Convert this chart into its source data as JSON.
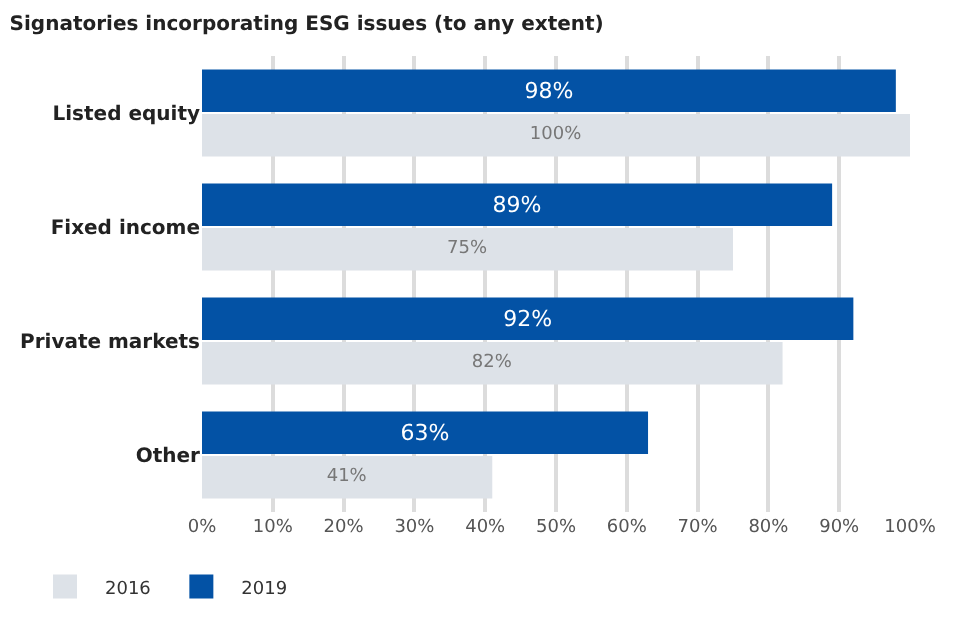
{
  "chart_data": {
    "type": "bar",
    "orientation": "horizontal",
    "title": "Signatories incorporating ESG issues (to any extent)",
    "categories": [
      "Listed equity",
      "Fixed income",
      "Private markets",
      "Other"
    ],
    "series": [
      {
        "name": "2016",
        "color": "#dde2e8",
        "values": [
          100,
          75,
          82,
          41
        ],
        "value_labels": [
          "100%",
          "75%",
          "82%",
          "41%"
        ]
      },
      {
        "name": "2019",
        "color": "#0352a5",
        "values": [
          98,
          89,
          92,
          63
        ],
        "value_labels": [
          "98%",
          "89%",
          "92%",
          "63%"
        ]
      }
    ],
    "xlim": [
      0,
      100
    ],
    "xticks": [
      {
        "value": 0,
        "label": "0%"
      },
      {
        "value": 10,
        "label": "10%"
      },
      {
        "value": 20,
        "label": "20%"
      },
      {
        "value": 30,
        "label": "30%"
      },
      {
        "value": 40,
        "label": "40%"
      },
      {
        "value": 50,
        "label": "50%"
      },
      {
        "value": 60,
        "label": "60%"
      },
      {
        "value": 70,
        "label": "70%"
      },
      {
        "value": 80,
        "label": "80%"
      },
      {
        "value": 90,
        "label": "90%"
      },
      {
        "value": 100,
        "label": "100%"
      }
    ],
    "grid": "x",
    "legend": "bottom left"
  }
}
